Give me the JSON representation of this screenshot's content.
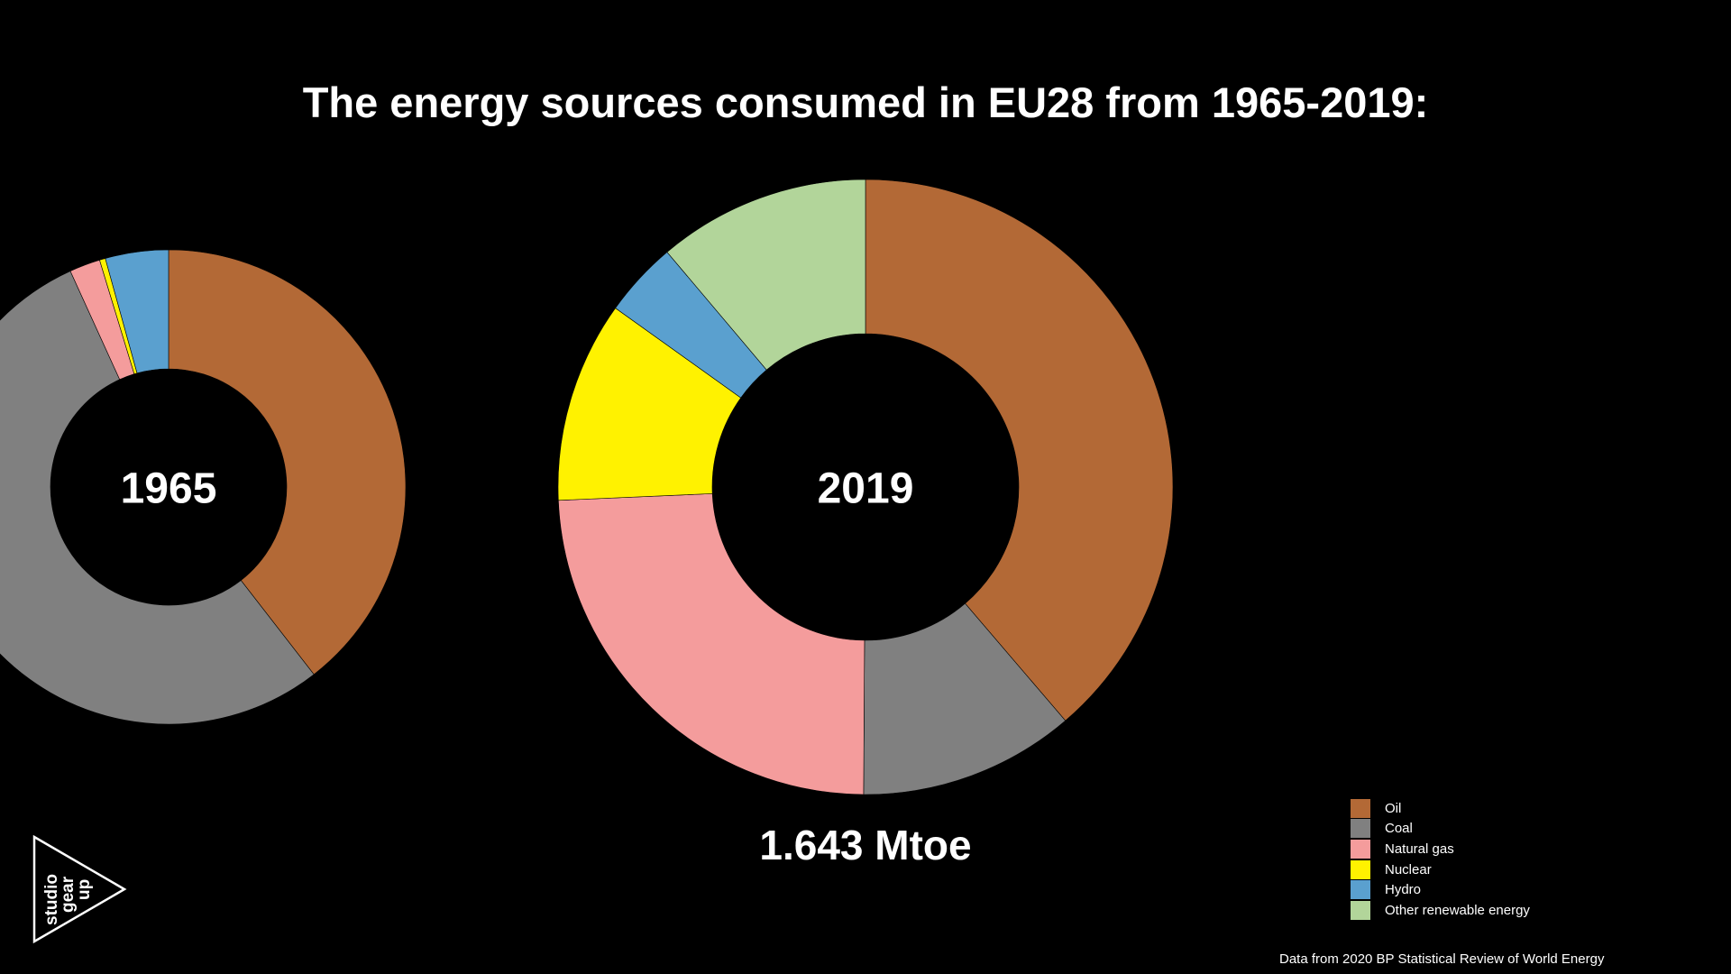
{
  "title": "The energy sources consumed in EU28 from 1965-2019:",
  "source_note": "Data from 2020 BP Statistical Review of World Energy",
  "logo": {
    "lines": [
      "studio",
      "gear",
      "up"
    ]
  },
  "chart_data": [
    {
      "type": "pie",
      "variant": "donut",
      "center_label": "1965",
      "labels": [
        "Oil",
        "Coal",
        "Natural gas",
        "Nuclear",
        "Hydro",
        "Other renewable energy"
      ],
      "values": [
        39.5,
        53.7,
        2.1,
        0.4,
        4.3,
        0.0
      ],
      "colors": [
        "#b36936",
        "#808080",
        "#f49c9c",
        "#fff200",
        "#5aa0cf",
        "#b2d59a"
      ]
    },
    {
      "type": "pie",
      "variant": "donut",
      "center_label": "2019",
      "total_label": "1.643 Mtoe",
      "labels": [
        "Oil",
        "Coal",
        "Natural gas",
        "Nuclear",
        "Hydro",
        "Other renewable energy"
      ],
      "values": [
        39.2,
        11.5,
        24.5,
        10.7,
        4.0,
        11.3
      ],
      "colors": [
        "#b36936",
        "#808080",
        "#f49c9c",
        "#fff200",
        "#5aa0cf",
        "#b2d59a"
      ]
    }
  ],
  "legend": {
    "placement": "bottom-right",
    "items": [
      {
        "label": "Oil",
        "color": "#b36936"
      },
      {
        "label": "Coal",
        "color": "#808080"
      },
      {
        "label": "Natural gas",
        "color": "#f49c9c"
      },
      {
        "label": "Nuclear",
        "color": "#fff200"
      },
      {
        "label": "Hydro",
        "color": "#5aa0cf"
      },
      {
        "label": "Other renewable energy",
        "color": "#b2d59a"
      }
    ]
  }
}
